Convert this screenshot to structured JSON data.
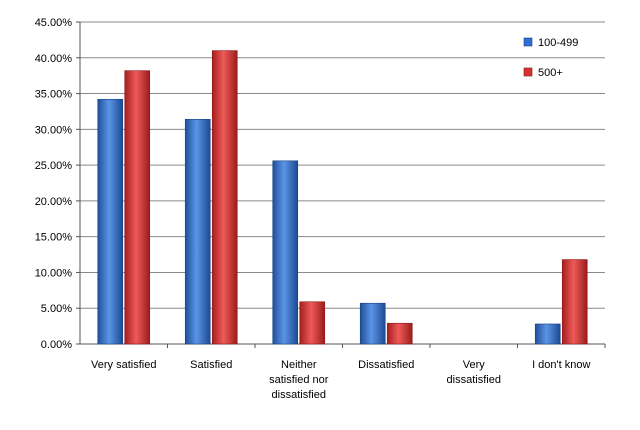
{
  "chart_data": {
    "type": "bar",
    "categories": [
      [
        "Very satisfied"
      ],
      [
        "Satisfied"
      ],
      [
        "Neither",
        "satisfied nor",
        "dissatisfied"
      ],
      [
        "Dissatisfied"
      ],
      [
        "Very",
        "dissatisfied"
      ],
      [
        "I don't know"
      ]
    ],
    "series": [
      {
        "name": "100-499",
        "color": "#2f6fd0",
        "values": [
          34.2,
          31.4,
          25.6,
          5.7,
          0.0,
          2.8
        ]
      },
      {
        "name": "500+",
        "color": "#d8302f",
        "values": [
          38.2,
          41.0,
          5.9,
          2.9,
          0.0,
          11.8
        ]
      }
    ],
    "ylim": [
      0,
      45
    ],
    "yticks": [
      "0.00%",
      "5.00%",
      "10.00%",
      "15.00%",
      "20.00%",
      "25.00%",
      "30.00%",
      "35.00%",
      "40.00%",
      "45.00%"
    ],
    "ytick_values": [
      0,
      5,
      10,
      15,
      20,
      25,
      30,
      35,
      40,
      45
    ],
    "grid": true,
    "legend_position": "top-right",
    "title": "",
    "xlabel": "",
    "ylabel": ""
  }
}
